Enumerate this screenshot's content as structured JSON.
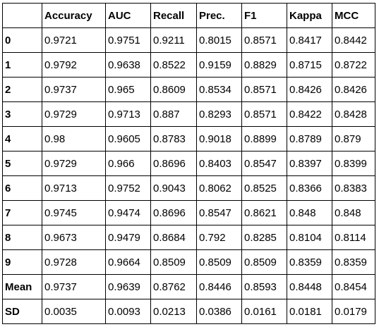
{
  "table": {
    "corner": "",
    "headers": [
      "Accuracy",
      "AUC",
      "Recall",
      "Prec.",
      "F1",
      "Kappa",
      "MCC"
    ],
    "rows": [
      {
        "label": "0",
        "values": [
          "0.9721",
          "0.9751",
          "0.9211",
          "0.8015",
          "0.8571",
          "0.8417",
          "0.8442"
        ]
      },
      {
        "label": "1",
        "values": [
          "0.9792",
          "0.9638",
          "0.8522",
          "0.9159",
          "0.8829",
          "0.8715",
          "0.8722"
        ]
      },
      {
        "label": "2",
        "values": [
          "0.9737",
          "0.965",
          "0.8609",
          "0.8534",
          "0.8571",
          "0.8426",
          "0.8426"
        ]
      },
      {
        "label": "3",
        "values": [
          "0.9729",
          "0.9713",
          "0.887",
          "0.8293",
          "0.8571",
          "0.8422",
          "0.8428"
        ]
      },
      {
        "label": "4",
        "values": [
          "0.98",
          "0.9605",
          "0.8783",
          "0.9018",
          "0.8899",
          "0.8789",
          "0.879"
        ]
      },
      {
        "label": "5",
        "values": [
          "0.9729",
          "0.966",
          "0.8696",
          "0.8403",
          "0.8547",
          "0.8397",
          "0.8399"
        ]
      },
      {
        "label": "6",
        "values": [
          "0.9713",
          "0.9752",
          "0.9043",
          "0.8062",
          "0.8525",
          "0.8366",
          "0.8383"
        ]
      },
      {
        "label": "7",
        "values": [
          "0.9745",
          "0.9474",
          "0.8696",
          "0.8547",
          "0.8621",
          "0.848",
          "0.848"
        ]
      },
      {
        "label": "8",
        "values": [
          "0.9673",
          "0.9479",
          "0.8684",
          "0.792",
          "0.8285",
          "0.8104",
          "0.8114"
        ]
      },
      {
        "label": "9",
        "values": [
          "0.9728",
          "0.9664",
          "0.8509",
          "0.8509",
          "0.8509",
          "0.8359",
          "0.8359"
        ]
      },
      {
        "label": "Mean",
        "values": [
          "0.9737",
          "0.9639",
          "0.8762",
          "0.8446",
          "0.8593",
          "0.8448",
          "0.8454"
        ]
      },
      {
        "label": "SD",
        "values": [
          "0.0035",
          "0.0093",
          "0.0213",
          "0.0386",
          "0.0161",
          "0.0181",
          "0.0179"
        ]
      }
    ]
  }
}
